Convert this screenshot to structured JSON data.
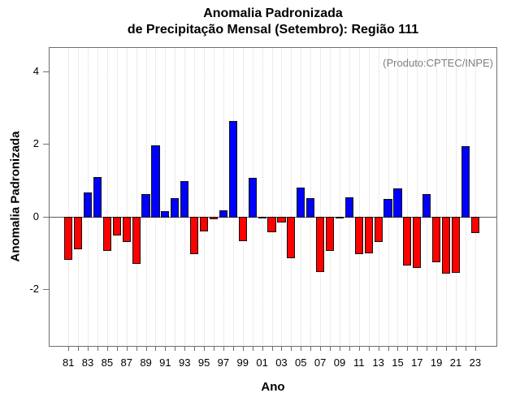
{
  "title": {
    "line1": "Anomalia Padronizada",
    "line2": "de Precipitação Mensal (Setembro): Região 111"
  },
  "annotation": "(Produto:CPTEC/INPE)",
  "chart_data": {
    "type": "bar",
    "title": "Anomalia Padronizada de Precipitação Mensal (Setembro): Região 111",
    "xlabel": "Ano",
    "ylabel": "Anomalia Padronizada",
    "ylim": [
      -3.6,
      4.65
    ],
    "yticks": [
      -2,
      0,
      2,
      4
    ],
    "grid": "vertical-dotted-per-year",
    "legend": "none",
    "colors": {
      "positive": "#0000ff",
      "negative": "#ff0000"
    },
    "x": [
      1981,
      1982,
      1983,
      1984,
      1985,
      1986,
      1987,
      1988,
      1989,
      1990,
      1991,
      1992,
      1993,
      1994,
      1995,
      1996,
      1997,
      1998,
      1999,
      2000,
      2001,
      2002,
      2003,
      2004,
      2005,
      2006,
      2007,
      2008,
      2009,
      2010,
      2011,
      2012,
      2013,
      2014,
      2015,
      2016,
      2017,
      2018,
      2019,
      2020,
      2021,
      2022,
      2023
    ],
    "x_tick_labels": [
      "81",
      "83",
      "85",
      "87",
      "89",
      "91",
      "93",
      "95",
      "97",
      "99",
      "01",
      "03",
      "05",
      "07",
      "09",
      "11",
      "13",
      "15",
      "17",
      "19",
      "21",
      "23"
    ],
    "values": [
      -1.19,
      -0.9,
      0.68,
      1.11,
      -0.95,
      -0.52,
      -0.7,
      -1.3,
      0.64,
      1.98,
      0.18,
      0.52,
      0.99,
      -1.03,
      -0.41,
      -0.07,
      0.19,
      2.65,
      -0.67,
      1.08,
      -0.02,
      -0.43,
      -0.16,
      -1.15,
      0.83,
      0.54,
      -1.54,
      -0.95,
      -0.02,
      0.55,
      -1.03,
      -1.01,
      -0.71,
      0.51,
      0.8,
      -1.34,
      -1.41,
      0.65,
      -1.27,
      -1.57,
      -1.55,
      1.96,
      -0.45
    ]
  }
}
